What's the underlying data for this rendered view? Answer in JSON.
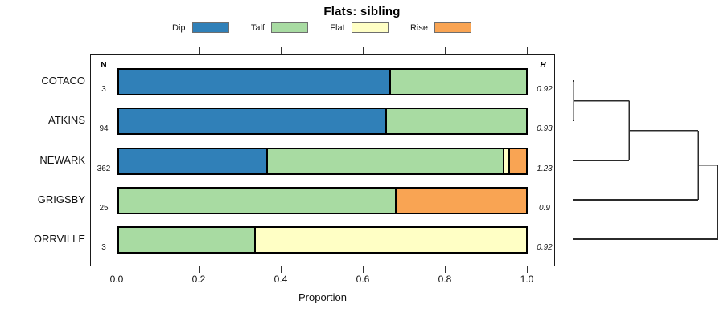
{
  "title": "Flats: sibling",
  "legend": [
    {
      "label": "Dip",
      "color": "#3080b8"
    },
    {
      "label": "Talf",
      "color": "#a8dba2"
    },
    {
      "label": "Flat",
      "color": "#ffffc5"
    },
    {
      "label": "Rise",
      "color": "#f9a453"
    }
  ],
  "columns": {
    "n_header": "N",
    "h_header": "H"
  },
  "xlabel": "Proportion",
  "x_ticks": [
    "0.0",
    "0.2",
    "0.4",
    "0.6",
    "0.8",
    "1.0"
  ],
  "chart_data": {
    "type": "bar",
    "subtype": "horizontal-stacked-proportion-with-dendrogram",
    "title": "Flats: sibling",
    "xlabel": "Proportion",
    "xlim": [
      0,
      1
    ],
    "grid": false,
    "legend_position": "top",
    "categories": [
      "Dip",
      "Talf",
      "Flat",
      "Rise"
    ],
    "rows": [
      {
        "label": "COTACO",
        "n": 3,
        "h": "0.92",
        "segments": [
          {
            "category": "Dip",
            "value": 0.667
          },
          {
            "category": "Talf",
            "value": 0.333
          }
        ]
      },
      {
        "label": "ATKINS",
        "n": 94,
        "h": "0.93",
        "segments": [
          {
            "category": "Dip",
            "value": 0.657
          },
          {
            "category": "Talf",
            "value": 0.343
          }
        ]
      },
      {
        "label": "NEWARK",
        "n": 362,
        "h": "1.23",
        "segments": [
          {
            "category": "Dip",
            "value": 0.365
          },
          {
            "category": "Talf",
            "value": 0.584
          },
          {
            "category": "Flat",
            "value": 0.01
          },
          {
            "category": "Rise",
            "value": 0.041
          }
        ]
      },
      {
        "label": "GRIGSBY",
        "n": 25,
        "h": "0.9",
        "segments": [
          {
            "category": "Talf",
            "value": 0.68
          },
          {
            "category": "Rise",
            "value": 0.32
          }
        ]
      },
      {
        "label": "ORRVILLE",
        "n": 3,
        "h": "0.92",
        "segments": [
          {
            "category": "Talf",
            "value": 0.333
          },
          {
            "category": "Flat",
            "value": 0.667
          }
        ]
      }
    ],
    "dendrogram": {
      "orientation": "right",
      "leaf_order": [
        "COTACO",
        "ATKINS",
        "NEWARK",
        "GRIGSBY",
        "ORRVILLE"
      ],
      "merges": [
        {
          "children": [
            "COTACO",
            "ATKINS"
          ],
          "height": 0.006
        },
        {
          "children": [
            "merge0",
            "NEWARK"
          ],
          "height": 0.39
        },
        {
          "children": [
            "merge1",
            "GRIGSBY"
          ],
          "height": 0.867
        },
        {
          "children": [
            "merge2",
            "ORRVILLE"
          ],
          "height": 1.0
        }
      ]
    }
  }
}
